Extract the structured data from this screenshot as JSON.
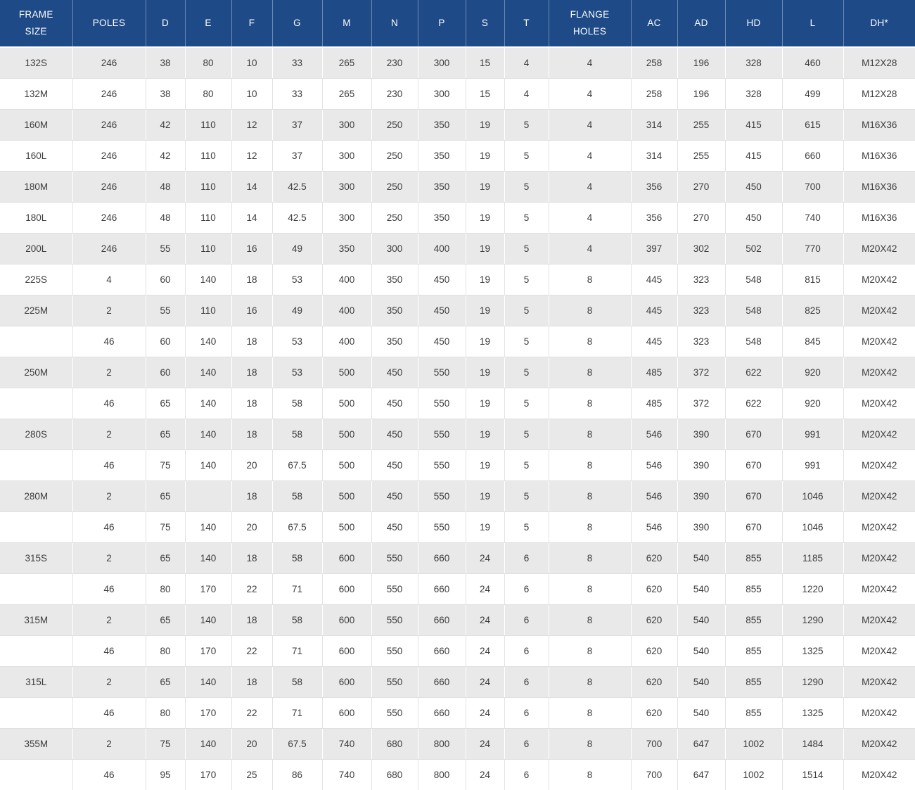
{
  "colors": {
    "header_bg": "#1e4b87",
    "header_text": "#ffffff",
    "row_shaded_bg": "#e9e9e9",
    "row_plain_bg": "#ffffff",
    "cell_text": "#3c3c3c",
    "grid_line": "#e0e0e0"
  },
  "table": {
    "columns": [
      "FRAME\nSIZE",
      "POLES",
      "D",
      "E",
      "F",
      "G",
      "M",
      "N",
      "P",
      "S",
      "T",
      "FLANGE\nHOLES",
      "AC",
      "AD",
      "HD",
      "L",
      "DH*"
    ],
    "rows": [
      [
        "132S",
        "246",
        "38",
        "80",
        "10",
        "33",
        "265",
        "230",
        "300",
        "15",
        "4",
        "4",
        "258",
        "196",
        "328",
        "460",
        "M12X28"
      ],
      [
        "132M",
        "246",
        "38",
        "80",
        "10",
        "33",
        "265",
        "230",
        "300",
        "15",
        "4",
        "4",
        "258",
        "196",
        "328",
        "499",
        "M12X28"
      ],
      [
        "160M",
        "246",
        "42",
        "110",
        "12",
        "37",
        "300",
        "250",
        "350",
        "19",
        "5",
        "4",
        "314",
        "255",
        "415",
        "615",
        "M16X36"
      ],
      [
        "160L",
        "246",
        "42",
        "110",
        "12",
        "37",
        "300",
        "250",
        "350",
        "19",
        "5",
        "4",
        "314",
        "255",
        "415",
        "660",
        "M16X36"
      ],
      [
        "180M",
        "246",
        "48",
        "110",
        "14",
        "42.5",
        "300",
        "250",
        "350",
        "19",
        "5",
        "4",
        "356",
        "270",
        "450",
        "700",
        "M16X36"
      ],
      [
        "180L",
        "246",
        "48",
        "110",
        "14",
        "42.5",
        "300",
        "250",
        "350",
        "19",
        "5",
        "4",
        "356",
        "270",
        "450",
        "740",
        "M16X36"
      ],
      [
        "200L",
        "246",
        "55",
        "110",
        "16",
        "49",
        "350",
        "300",
        "400",
        "19",
        "5",
        "4",
        "397",
        "302",
        "502",
        "770",
        "M20X42"
      ],
      [
        "225S",
        "4",
        "60",
        "140",
        "18",
        "53",
        "400",
        "350",
        "450",
        "19",
        "5",
        "8",
        "445",
        "323",
        "548",
        "815",
        "M20X42"
      ],
      [
        "225M",
        "2",
        "55",
        "110",
        "16",
        "49",
        "400",
        "350",
        "450",
        "19",
        "5",
        "8",
        "445",
        "323",
        "548",
        "825",
        "M20X42"
      ],
      [
        "",
        "46",
        "60",
        "140",
        "18",
        "53",
        "400",
        "350",
        "450",
        "19",
        "5",
        "8",
        "445",
        "323",
        "548",
        "845",
        "M20X42"
      ],
      [
        "250M",
        "2",
        "60",
        "140",
        "18",
        "53",
        "500",
        "450",
        "550",
        "19",
        "5",
        "8",
        "485",
        "372",
        "622",
        "920",
        "M20X42"
      ],
      [
        "",
        "46",
        "65",
        "140",
        "18",
        "58",
        "500",
        "450",
        "550",
        "19",
        "5",
        "8",
        "485",
        "372",
        "622",
        "920",
        "M20X42"
      ],
      [
        "280S",
        "2",
        "65",
        "140",
        "18",
        "58",
        "500",
        "450",
        "550",
        "19",
        "5",
        "8",
        "546",
        "390",
        "670",
        "991",
        "M20X42"
      ],
      [
        "",
        "46",
        "75",
        "140",
        "20",
        "67.5",
        "500",
        "450",
        "550",
        "19",
        "5",
        "8",
        "546",
        "390",
        "670",
        "991",
        "M20X42"
      ],
      [
        "280M",
        "2",
        "65",
        "",
        "18",
        "58",
        "500",
        "450",
        "550",
        "19",
        "5",
        "8",
        "546",
        "390",
        "670",
        "1046",
        "M20X42"
      ],
      [
        "",
        "46",
        "75",
        "140",
        "20",
        "67.5",
        "500",
        "450",
        "550",
        "19",
        "5",
        "8",
        "546",
        "390",
        "670",
        "1046",
        "M20X42"
      ],
      [
        "315S",
        "2",
        "65",
        "140",
        "18",
        "58",
        "600",
        "550",
        "660",
        "24",
        "6",
        "8",
        "620",
        "540",
        "855",
        "1185",
        "M20X42"
      ],
      [
        "",
        "46",
        "80",
        "170",
        "22",
        "71",
        "600",
        "550",
        "660",
        "24",
        "6",
        "8",
        "620",
        "540",
        "855",
        "1220",
        "M20X42"
      ],
      [
        "315M",
        "2",
        "65",
        "140",
        "18",
        "58",
        "600",
        "550",
        "660",
        "24",
        "6",
        "8",
        "620",
        "540",
        "855",
        "1290",
        "M20X42"
      ],
      [
        "",
        "46",
        "80",
        "170",
        "22",
        "71",
        "600",
        "550",
        "660",
        "24",
        "6",
        "8",
        "620",
        "540",
        "855",
        "1325",
        "M20X42"
      ],
      [
        "315L",
        "2",
        "65",
        "140",
        "18",
        "58",
        "600",
        "550",
        "660",
        "24",
        "6",
        "8",
        "620",
        "540",
        "855",
        "1290",
        "M20X42"
      ],
      [
        "",
        "46",
        "80",
        "170",
        "22",
        "71",
        "600",
        "550",
        "660",
        "24",
        "6",
        "8",
        "620",
        "540",
        "855",
        "1325",
        "M20X42"
      ],
      [
        "355M",
        "2",
        "75",
        "140",
        "20",
        "67.5",
        "740",
        "680",
        "800",
        "24",
        "6",
        "8",
        "700",
        "647",
        "1002",
        "1484",
        "M20X42"
      ],
      [
        "",
        "46",
        "95",
        "170",
        "25",
        "86",
        "740",
        "680",
        "800",
        "24",
        "6",
        "8",
        "700",
        "647",
        "1002",
        "1514",
        "M20X42"
      ]
    ]
  }
}
